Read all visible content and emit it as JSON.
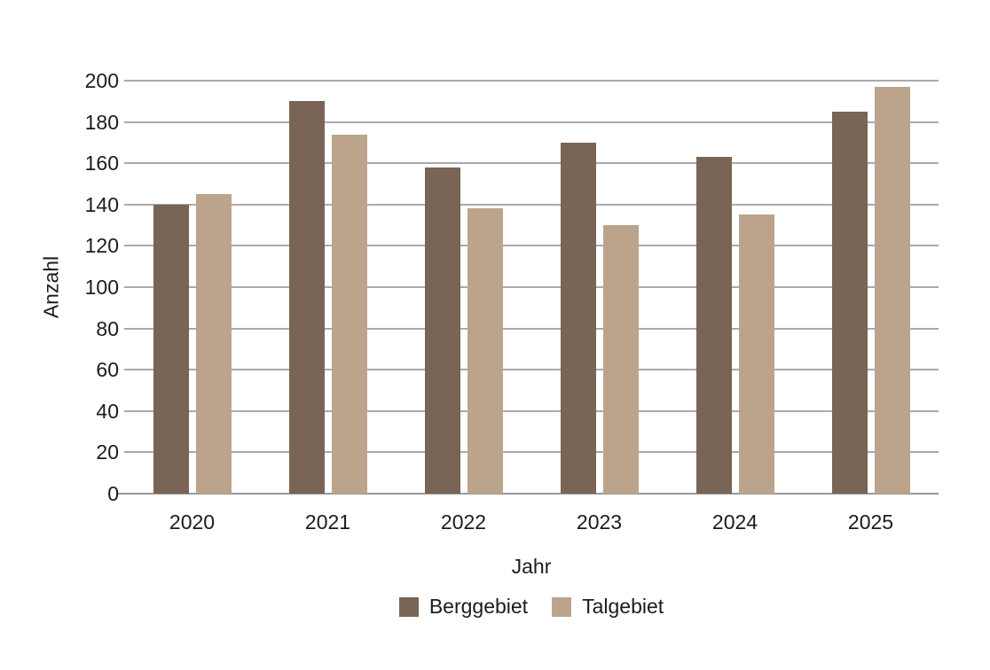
{
  "accent_colors": {
    "berggebiet": "#796456",
    "talgebiet": "#bca48c",
    "gridline": "#aaaaaa",
    "axis_line": "#999999",
    "text": "#1c1c1c",
    "background": "#ffffff"
  },
  "chart_data": {
    "type": "bar",
    "title": "",
    "xlabel": "Jahr",
    "ylabel": "Anzahl",
    "categories": [
      "2020",
      "2021",
      "2022",
      "2023",
      "2024",
      "2025"
    ],
    "series": [
      {
        "name": "Berggebiet",
        "color": "#796456",
        "values": [
          140,
          190,
          158,
          170,
          163,
          185
        ]
      },
      {
        "name": "Talgebiet",
        "color": "#bca48c",
        "values": [
          145,
          174,
          138,
          130,
          135,
          197
        ]
      }
    ],
    "ylim": [
      0,
      200
    ],
    "yticks": [
      0,
      20,
      40,
      60,
      80,
      100,
      120,
      140,
      160,
      180,
      200
    ],
    "grid": "horizontal",
    "legend_position": "bottom"
  }
}
